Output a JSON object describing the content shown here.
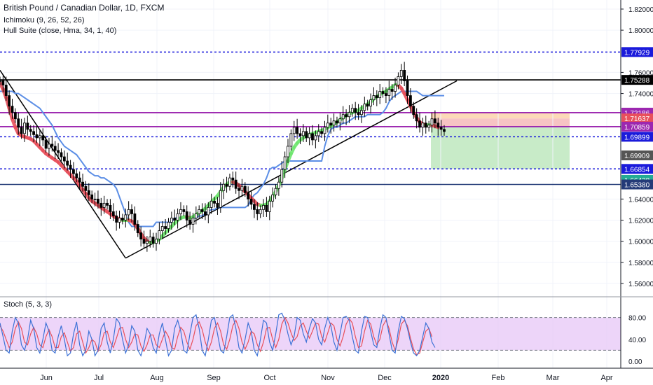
{
  "legend": {
    "symbol": "British Pound / Canadian Dollar, 1D, FXCM",
    "ichimoku": "Ichimoku (9, 26, 52, 26)",
    "hull": "Hull Suite (close, Hma, 34, 1, 40)",
    "stoch": "Stoch (5, 3, 3)"
  },
  "colors": {
    "hull_up": "#6ee66e",
    "hull_down": "#e8505b",
    "baseline": "#5b8ee6",
    "stoch_k": "#3d72d6",
    "stoch_d": "#e8505b",
    "stoch_band": "#e6c3f7",
    "candle": "#000000",
    "purple_line": "#9c27b0",
    "blue_dotted": "#1a1adb",
    "navy_line": "#243b78",
    "black_line": "#000000",
    "profit_zone": "#c8ebc8",
    "loss_zone": "#f7c4c4",
    "entry_zone": "#fcd9b8"
  },
  "chart_data": [
    {
      "type": "line",
      "title": "British Pound / Canadian Dollar, 1D, FXCM",
      "x_ticks": [
        "Jun",
        "Jul",
        "Aug",
        "Sep",
        "Oct",
        "Nov",
        "Dec",
        "2020",
        "Feb",
        "Mar",
        "Apr"
      ],
      "ylim": [
        1.55,
        1.8286
      ],
      "y_ticks": [
        "1.82000",
        "1.80000",
        "1.76000",
        "1.74000",
        "1.64000",
        "1.62000",
        "1.60000",
        "1.58000",
        "1.56000"
      ],
      "series": [
        {
          "role": "close",
          "values": [
            1.752,
            1.748,
            1.738,
            1.728,
            1.722,
            1.716,
            1.708,
            1.702,
            1.712,
            1.706,
            1.704,
            1.701,
            1.698,
            1.7,
            1.696,
            1.688,
            1.692,
            1.69,
            1.686,
            1.684,
            1.68,
            1.676,
            1.672,
            1.668,
            1.664,
            1.66,
            1.656,
            1.652,
            1.648,
            1.644,
            1.64,
            1.64,
            1.636,
            1.632,
            1.636,
            1.634,
            1.628,
            1.624,
            1.618,
            1.622,
            1.62,
            1.625,
            1.63,
            1.626,
            1.616,
            1.608,
            1.602,
            1.598,
            1.6,
            1.604,
            1.598,
            1.602,
            1.61,
            1.614,
            1.612,
            1.618,
            1.622,
            1.62,
            1.626,
            1.63,
            1.628,
            1.62,
            1.616,
            1.622,
            1.626,
            1.63,
            1.628,
            1.625,
            1.632,
            1.638,
            1.636,
            1.632,
            1.648,
            1.654,
            1.652,
            1.66,
            1.658,
            1.65,
            1.648,
            1.652,
            1.646,
            1.64,
            1.635,
            1.63,
            1.626,
            1.63,
            1.634,
            1.628,
            1.638,
            1.644,
            1.65,
            1.656,
            1.668,
            1.68,
            1.69,
            1.702,
            1.708,
            1.702,
            1.7,
            1.704,
            1.698,
            1.702,
            1.696,
            1.7,
            1.704,
            1.702,
            1.708,
            1.712,
            1.71,
            1.714,
            1.712,
            1.716,
            1.72,
            1.718,
            1.722,
            1.726,
            1.722,
            1.72,
            1.724,
            1.73,
            1.728,
            1.734,
            1.738,
            1.736,
            1.742,
            1.74,
            1.738,
            1.744,
            1.742,
            1.748,
            1.756,
            1.762,
            1.752,
            1.738,
            1.728,
            1.72,
            1.714,
            1.708,
            1.712,
            1.708,
            1.71,
            1.716,
            1.712,
            1.708,
            1.706,
            1.704
          ]
        },
        {
          "role": "hull_suite",
          "values": [
            1.75,
            1.744,
            1.736,
            1.726,
            1.716,
            1.708,
            1.702,
            1.7,
            1.699,
            1.698,
            1.697,
            1.695,
            1.692,
            1.689,
            1.686,
            1.683,
            1.681,
            1.679,
            1.677,
            1.675,
            1.672,
            1.669,
            1.666,
            1.663,
            1.66,
            1.657,
            1.653,
            1.649,
            1.645,
            1.641,
            1.638,
            1.636,
            1.634,
            1.632,
            1.63,
            1.628,
            1.626,
            1.624,
            1.622,
            1.621,
            1.62,
            1.62,
            1.62,
            1.619,
            1.616,
            1.612,
            1.607,
            1.603,
            1.6,
            1.599,
            1.599,
            1.6,
            1.602,
            1.605,
            1.608,
            1.611,
            1.614,
            1.617,
            1.62,
            1.622,
            1.623,
            1.623,
            1.622,
            1.623,
            1.625,
            1.627,
            1.629,
            1.631,
            1.634,
            1.637,
            1.64,
            1.643,
            1.647,
            1.651,
            1.654,
            1.656,
            1.656,
            1.655,
            1.653,
            1.65,
            1.647,
            1.644,
            1.641,
            1.638,
            1.635,
            1.634,
            1.634,
            1.635,
            1.638,
            1.642,
            1.647,
            1.653,
            1.66,
            1.668,
            1.676,
            1.683,
            1.689,
            1.693,
            1.696,
            1.698,
            1.7,
            1.701,
            1.702,
            1.703,
            1.704,
            1.705,
            1.706,
            1.708,
            1.709,
            1.711,
            1.713,
            1.715,
            1.717,
            1.719,
            1.721,
            1.722,
            1.723,
            1.724,
            1.726,
            1.728,
            1.73,
            1.732,
            1.735,
            1.737,
            1.739,
            1.741,
            1.742,
            1.744,
            1.746,
            1.748,
            1.748,
            1.745,
            1.74,
            1.734,
            1.728,
            1.722,
            1.717,
            1.713,
            1.711,
            1.71,
            1.71,
            1.71,
            1.709,
            1.708
          ]
        },
        {
          "role": "ichimoku_baseline",
          "values": [
            1.742,
            1.742,
            1.742,
            1.742,
            1.742,
            1.74,
            1.74,
            1.738,
            1.736,
            1.734,
            1.732,
            1.73,
            1.728,
            1.726,
            1.722,
            1.718,
            1.714,
            1.71,
            1.704,
            1.698,
            1.694,
            1.69,
            1.688,
            1.686,
            1.684,
            1.682,
            1.678,
            1.674,
            1.67,
            1.666,
            1.664,
            1.662,
            1.662,
            1.66,
            1.66,
            1.658,
            1.656,
            1.654,
            1.65,
            1.642,
            1.634,
            1.626,
            1.618,
            1.614,
            1.614,
            1.614,
            1.614,
            1.614,
            1.614,
            1.614,
            1.614,
            1.618,
            1.618,
            1.618,
            1.618,
            1.618,
            1.618,
            1.622,
            1.622,
            1.622,
            1.622,
            1.622,
            1.622,
            1.622,
            1.622,
            1.624,
            1.624,
            1.626,
            1.628,
            1.63,
            1.63,
            1.632,
            1.632,
            1.632,
            1.632,
            1.632,
            1.632,
            1.632,
            1.632,
            1.632,
            1.632,
            1.634,
            1.64,
            1.644,
            1.646,
            1.65,
            1.654,
            1.66,
            1.668,
            1.67,
            1.67,
            1.672,
            1.674,
            1.676,
            1.676,
            1.676,
            1.676,
            1.676,
            1.676,
            1.676,
            1.676,
            1.676,
            1.676,
            1.676,
            1.676,
            1.676,
            1.69,
            1.7,
            1.706,
            1.708,
            1.708,
            1.71,
            1.712,
            1.712,
            1.714,
            1.716,
            1.718,
            1.718,
            1.718,
            1.718,
            1.72,
            1.72,
            1.72,
            1.72,
            1.72,
            1.722,
            1.726,
            1.732,
            1.736,
            1.738,
            1.74,
            1.742,
            1.742,
            1.742,
            1.742,
            1.742,
            1.742,
            1.74,
            1.738,
            1.738,
            1.738,
            1.738,
            1.738,
            1.738,
            1.738,
            1.738
          ]
        }
      ],
      "levels": [
        {
          "label": "1.77929",
          "style": "blue-dotted"
        },
        {
          "label": "1.75288",
          "style": "black-solid"
        },
        {
          "label": "1.72186",
          "style": "purple-solid"
        },
        {
          "label": "1.71637",
          "style": "tag"
        },
        {
          "label": "1.70859",
          "style": "purple-solid"
        },
        {
          "label": "1.69899",
          "style": "blue-dotted"
        },
        {
          "label": "1.69909",
          "style": "tag"
        },
        {
          "label": "1.66854",
          "style": "blue-dotted"
        },
        {
          "label": "1.66428",
          "style": "tag"
        },
        {
          "label": "1.65380",
          "style": "navy-solid"
        }
      ],
      "trendlines": [
        "downtrend",
        "uptrend"
      ],
      "position_zones": [
        "entry",
        "stop",
        "target"
      ]
    },
    {
      "type": "line",
      "title": "Stoch (5, 3, 3)",
      "ylim": [
        0,
        100
      ],
      "y_ticks": [
        "80.00",
        "40.00",
        "0.00"
      ],
      "band": [
        20,
        80
      ],
      "series": [
        {
          "name": "%K",
          "values": [
            70,
            45,
            20,
            15,
            55,
            80,
            70,
            30,
            20,
            40,
            75,
            60,
            25,
            15,
            40,
            70,
            55,
            20,
            15,
            45,
            65,
            40,
            10,
            15,
            50,
            72,
            30,
            10,
            20,
            55,
            40,
            10,
            20,
            60,
            70,
            35,
            15,
            40,
            78,
            70,
            40,
            15,
            30,
            65,
            55,
            20,
            10,
            30,
            60,
            50,
            25,
            15,
            50,
            70,
            40,
            10,
            20,
            60,
            75,
            55,
            20,
            15,
            50,
            80,
            85,
            60,
            20,
            10,
            40,
            75,
            80,
            50,
            20,
            15,
            45,
            80,
            85,
            60,
            25,
            15,
            40,
            70,
            55,
            20,
            10,
            40,
            75,
            70,
            35,
            20,
            50,
            85,
            88,
            75,
            50,
            30,
            45,
            80,
            75,
            50,
            35,
            60,
            78,
            70,
            40,
            30,
            60,
            80,
            65,
            35,
            20,
            50,
            80,
            82,
            75,
            45,
            20,
            15,
            55,
            82,
            80,
            55,
            30,
            25,
            60,
            85,
            80,
            50,
            20,
            15,
            55,
            82,
            78,
            60,
            35,
            15,
            10,
            20,
            45,
            70,
            60,
            35,
            25
          ]
        },
        {
          "name": "%D",
          "values": [
            65,
            55,
            40,
            25,
            35,
            60,
            72,
            60,
            35,
            30,
            50,
            62,
            50,
            30,
            25,
            45,
            58,
            45,
            25,
            25,
            45,
            52,
            35,
            18,
            25,
            50,
            55,
            35,
            15,
            25,
            40,
            35,
            18,
            30,
            52,
            55,
            35,
            25,
            42,
            60,
            62,
            40,
            25,
            35,
            50,
            48,
            28,
            18,
            30,
            48,
            48,
            30,
            25,
            40,
            55,
            45,
            25,
            22,
            45,
            62,
            55,
            35,
            22,
            40,
            65,
            72,
            58,
            35,
            20,
            35,
            60,
            70,
            55,
            30,
            22,
            40,
            65,
            75,
            60,
            35,
            22,
            35,
            55,
            50,
            30,
            18,
            35,
            60,
            62,
            40,
            25,
            40,
            68,
            80,
            70,
            52,
            38,
            45,
            65,
            70,
            55,
            42,
            55,
            70,
            68,
            45,
            35,
            52,
            70,
            65,
            40,
            28,
            45,
            68,
            78,
            70,
            45,
            25,
            28,
            55,
            75,
            68,
            45,
            30,
            40,
            65,
            75,
            60,
            35,
            20,
            40,
            68,
            75,
            65,
            42,
            22,
            12,
            15,
            35,
            55,
            60,
            45
          ]
        }
      ]
    }
  ]
}
